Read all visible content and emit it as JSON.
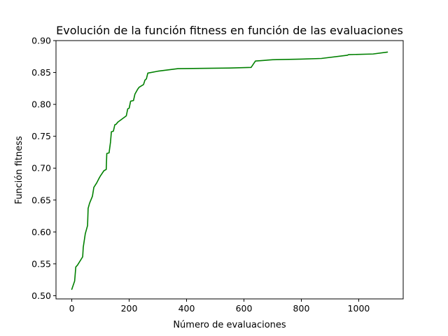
{
  "chart_data": {
    "type": "line",
    "title": "Evolución de la función fitness en función de las evaluaciones",
    "xlabel": "Número de evaluaciones",
    "ylabel": "Función fitness",
    "xlim": [
      -55,
      1155
    ],
    "ylim": [
      0.495,
      0.9
    ],
    "xticks": [
      0,
      200,
      400,
      600,
      800,
      1000
    ],
    "yticks": [
      0.5,
      0.55,
      0.6,
      0.65,
      0.7,
      0.75,
      0.8,
      0.85,
      0.9
    ],
    "grid": false,
    "line_color": "#008000",
    "series": [
      {
        "x": [
          0,
          10,
          14,
          20,
          38,
          40,
          43,
          47,
          55,
          57,
          62,
          72,
          77,
          80,
          87,
          95,
          100,
          112,
          120,
          122,
          130,
          135,
          138,
          145,
          150,
          155,
          160,
          190,
          195,
          200,
          205,
          215,
          220,
          230,
          235,
          250,
          255,
          260,
          265,
          300,
          370,
          550,
          625,
          640,
          700,
          800,
          870,
          960,
          965,
          1050,
          1100
        ],
        "y": [
          0.51,
          0.523,
          0.545,
          0.548,
          0.561,
          0.576,
          0.585,
          0.597,
          0.61,
          0.637,
          0.645,
          0.656,
          0.67,
          0.672,
          0.677,
          0.684,
          0.688,
          0.696,
          0.698,
          0.723,
          0.724,
          0.741,
          0.757,
          0.758,
          0.768,
          0.769,
          0.772,
          0.782,
          0.793,
          0.794,
          0.805,
          0.806,
          0.816,
          0.824,
          0.827,
          0.831,
          0.838,
          0.84,
          0.849,
          0.852,
          0.856,
          0.857,
          0.858,
          0.868,
          0.87,
          0.871,
          0.872,
          0.877,
          0.878,
          0.879,
          0.882
        ]
      }
    ]
  }
}
